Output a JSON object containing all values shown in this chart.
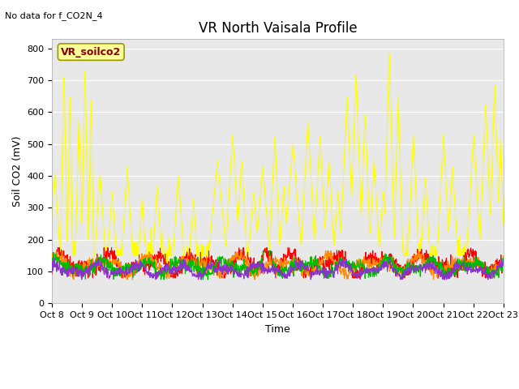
{
  "title": "VR North Vaisala Profile",
  "no_data_text": "No data for f_CO2N_4",
  "ylabel": "Soil CO2 (mV)",
  "xlabel": "Time",
  "ylim": [
    0,
    830
  ],
  "background_color": "#e8e8e8",
  "fig_background": "#ffffff",
  "series": {
    "CO2N_1": {
      "color": "#ff0000",
      "lw": 0.8
    },
    "CO2N_2": {
      "color": "#ff8800",
      "lw": 0.8
    },
    "CO2N_3": {
      "color": "#ffff00",
      "lw": 0.8
    },
    "North -4cm": {
      "color": "#00bb00",
      "lw": 0.8
    },
    "East -4cm": {
      "color": "#8833cc",
      "lw": 0.8
    }
  },
  "xtick_labels": [
    "Oct 8",
    "Oct 9",
    "Oct 10",
    "Oct 11",
    "Oct 12",
    "Oct 13",
    "Oct 14",
    "Oct 15",
    "Oct 16",
    "Oct 17",
    "Oct 18",
    "Oct 19",
    "Oct 20",
    "Oct 21",
    "Oct 22",
    "Oct 23"
  ],
  "ytick_values": [
    0,
    100,
    200,
    300,
    400,
    500,
    600,
    700,
    800
  ],
  "vr_soilco2_box_color": "#ffff99",
  "vr_soilco2_text": "VR_soilco2",
  "vr_soilco2_text_color": "#8b0000",
  "title_fontsize": 12,
  "label_fontsize": 9,
  "tick_fontsize": 8
}
